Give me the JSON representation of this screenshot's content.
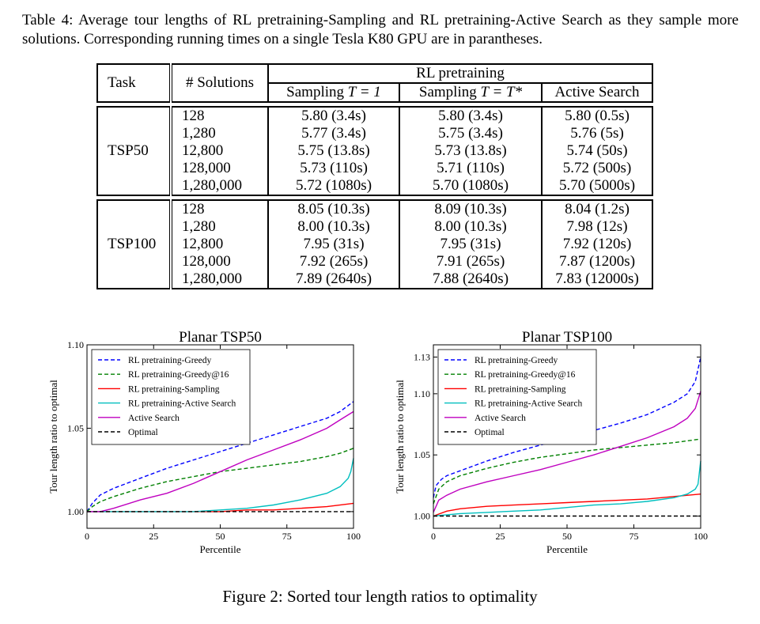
{
  "table_caption": "Table 4: Average tour lengths of RL pretraining-Sampling and RL pretraining-Active Search as they sample more solutions. Corresponding running times on a single Tesla K80 GPU are in parantheses.",
  "table": {
    "header_task": "Task",
    "header_solutions": "# Solutions",
    "header_group": "RL pretraining",
    "col_sampling_t1_prefix": "Sampling ",
    "col_sampling_t1_math": "T = 1",
    "col_sampling_tstar_prefix": "Sampling ",
    "col_sampling_tstar_math": "T = T*",
    "col_active": "Active Search",
    "groups": [
      {
        "task": "TSP50",
        "rows": [
          {
            "solutions": "128",
            "s1": "5.80 (3.4s)",
            "s2": "5.80 (3.4s)",
            "as": "5.80 (0.5s)"
          },
          {
            "solutions": "1,280",
            "s1": "5.77 (3.4s)",
            "s2": "5.75 (3.4s)",
            "as": "5.76 (5s)"
          },
          {
            "solutions": "12,800",
            "s1": "5.75 (13.8s)",
            "s2": "5.73 (13.8s)",
            "as": "5.74 (50s)"
          },
          {
            "solutions": "128,000",
            "s1": "5.73 (110s)",
            "s2": "5.71 (110s)",
            "as": "5.72 (500s)"
          },
          {
            "solutions": "1,280,000",
            "s1": "5.72 (1080s)",
            "s2": "5.70 (1080s)",
            "as": "5.70 (5000s)"
          }
        ]
      },
      {
        "task": "TSP100",
        "rows": [
          {
            "solutions": "128",
            "s1": "8.05 (10.3s)",
            "s2": "8.09 (10.3s)",
            "as": "8.04 (1.2s)"
          },
          {
            "solutions": "1,280",
            "s1": "8.00 (10.3s)",
            "s2": "8.00 (10.3s)",
            "as": "7.98 (12s)"
          },
          {
            "solutions": "12,800",
            "s1": "7.95 (31s)",
            "s2": "7.95 (31s)",
            "as": "7.92 (120s)"
          },
          {
            "solutions": "128,000",
            "s1": "7.92 (265s)",
            "s2": "7.91 (265s)",
            "as": "7.87 (1200s)"
          },
          {
            "solutions": "1,280,000",
            "s1": "7.89 (2640s)",
            "s2": "7.88 (2640s)",
            "as": "7.83 (12000s)"
          }
        ]
      }
    ]
  },
  "figure_caption": "Figure 2: Sorted tour length ratios to optimality",
  "chart_data": [
    {
      "type": "line",
      "title": "Planar TSP50",
      "xlabel": "Percentile",
      "ylabel": "Tour length ratio to optimal",
      "xlim": [
        0,
        100
      ],
      "ylim": [
        0.99,
        1.1
      ],
      "xticks": [
        "0",
        "25",
        "50",
        "75",
        "100"
      ],
      "yticks": [
        "1.00",
        "1.05",
        "1.10"
      ],
      "legend_position": "top-left",
      "series": [
        {
          "name": "RL pretraining-Greedy",
          "color": "#0000ff",
          "dash": true,
          "x": [
            0,
            2,
            5,
            10,
            20,
            30,
            40,
            50,
            60,
            70,
            80,
            90,
            95,
            100
          ],
          "y": [
            1.0,
            1.005,
            1.01,
            1.014,
            1.02,
            1.026,
            1.031,
            1.036,
            1.041,
            1.046,
            1.051,
            1.056,
            1.06,
            1.066
          ]
        },
        {
          "name": "RL pretraining-Greedy@16",
          "color": "#008000",
          "dash": true,
          "x": [
            0,
            2,
            5,
            10,
            20,
            30,
            40,
            50,
            60,
            70,
            80,
            90,
            95,
            100
          ],
          "y": [
            1.0,
            1.003,
            1.006,
            1.009,
            1.014,
            1.018,
            1.021,
            1.024,
            1.026,
            1.028,
            1.03,
            1.033,
            1.035,
            1.038
          ]
        },
        {
          "name": "RL pretraining-Sampling",
          "color": "#ff0000",
          "dash": false,
          "x": [
            0,
            10,
            20,
            30,
            40,
            50,
            60,
            70,
            80,
            90,
            100
          ],
          "y": [
            1.0,
            1.0,
            1.0,
            1.0,
            1.0,
            1.0,
            1.001,
            1.001,
            1.002,
            1.003,
            1.005
          ]
        },
        {
          "name": "RL pretraining-Active Search",
          "color": "#00bfbf",
          "dash": false,
          "x": [
            0,
            10,
            20,
            30,
            40,
            50,
            60,
            70,
            80,
            90,
            95,
            98,
            99,
            100
          ],
          "y": [
            1.0,
            1.0,
            1.0,
            1.0,
            1.0,
            1.001,
            1.002,
            1.004,
            1.007,
            1.011,
            1.015,
            1.02,
            1.024,
            1.032
          ]
        },
        {
          "name": "Active Search",
          "color": "#bf00bf",
          "dash": false,
          "x": [
            0,
            5,
            10,
            20,
            30,
            40,
            50,
            60,
            70,
            80,
            90,
            95,
            100
          ],
          "y": [
            1.0,
            1.0,
            1.002,
            1.007,
            1.011,
            1.017,
            1.024,
            1.031,
            1.037,
            1.043,
            1.05,
            1.055,
            1.06
          ]
        },
        {
          "name": "Optimal",
          "color": "#000000",
          "dash": true,
          "x": [
            0,
            100
          ],
          "y": [
            1.0,
            1.0
          ]
        }
      ]
    },
    {
      "type": "line",
      "title": "Planar TSP100",
      "xlabel": "Percentile",
      "ylabel": "Tour length ratio to optimal",
      "xlim": [
        0,
        100
      ],
      "ylim": [
        0.99,
        1.14
      ],
      "xticks": [
        "0",
        "25",
        "50",
        "75",
        "100"
      ],
      "yticks": [
        "1.00",
        "1.05",
        "1.10",
        "1.13"
      ],
      "legend_position": "top-left",
      "series": [
        {
          "name": "RL pretraining-Greedy",
          "color": "#0000ff",
          "dash": true,
          "x": [
            0,
            1,
            3,
            5,
            10,
            20,
            30,
            40,
            50,
            60,
            70,
            80,
            90,
            95,
            98,
            100
          ],
          "y": [
            1.015,
            1.025,
            1.03,
            1.033,
            1.037,
            1.045,
            1.052,
            1.058,
            1.064,
            1.07,
            1.076,
            1.083,
            1.093,
            1.1,
            1.11,
            1.13
          ]
        },
        {
          "name": "RL pretraining-Greedy@16",
          "color": "#008000",
          "dash": true,
          "x": [
            0,
            2,
            5,
            10,
            20,
            30,
            40,
            50,
            60,
            70,
            80,
            90,
            100
          ],
          "y": [
            1.01,
            1.022,
            1.028,
            1.033,
            1.039,
            1.044,
            1.048,
            1.051,
            1.054,
            1.056,
            1.058,
            1.06,
            1.063
          ]
        },
        {
          "name": "RL pretraining-Sampling",
          "color": "#ff0000",
          "dash": false,
          "x": [
            0,
            5,
            10,
            20,
            30,
            40,
            50,
            60,
            70,
            80,
            90,
            100
          ],
          "y": [
            1.0,
            1.004,
            1.006,
            1.008,
            1.009,
            1.01,
            1.011,
            1.012,
            1.013,
            1.014,
            1.016,
            1.018
          ]
        },
        {
          "name": "RL pretraining-Active Search",
          "color": "#00bfbf",
          "dash": false,
          "x": [
            0,
            10,
            20,
            30,
            40,
            50,
            60,
            70,
            80,
            90,
            95,
            98,
            99,
            100
          ],
          "y": [
            1.0,
            1.002,
            1.003,
            1.004,
            1.005,
            1.007,
            1.009,
            1.01,
            1.012,
            1.015,
            1.018,
            1.022,
            1.026,
            1.045
          ]
        },
        {
          "name": "Active Search",
          "color": "#bf00bf",
          "dash": false,
          "x": [
            0,
            2,
            5,
            10,
            20,
            30,
            40,
            50,
            60,
            70,
            80,
            90,
            95,
            98,
            100
          ],
          "y": [
            1.003,
            1.013,
            1.017,
            1.022,
            1.028,
            1.033,
            1.038,
            1.044,
            1.05,
            1.057,
            1.064,
            1.073,
            1.08,
            1.088,
            1.102
          ]
        },
        {
          "name": "Optimal",
          "color": "#000000",
          "dash": true,
          "x": [
            0,
            100
          ],
          "y": [
            1.0,
            1.0
          ]
        }
      ]
    }
  ]
}
